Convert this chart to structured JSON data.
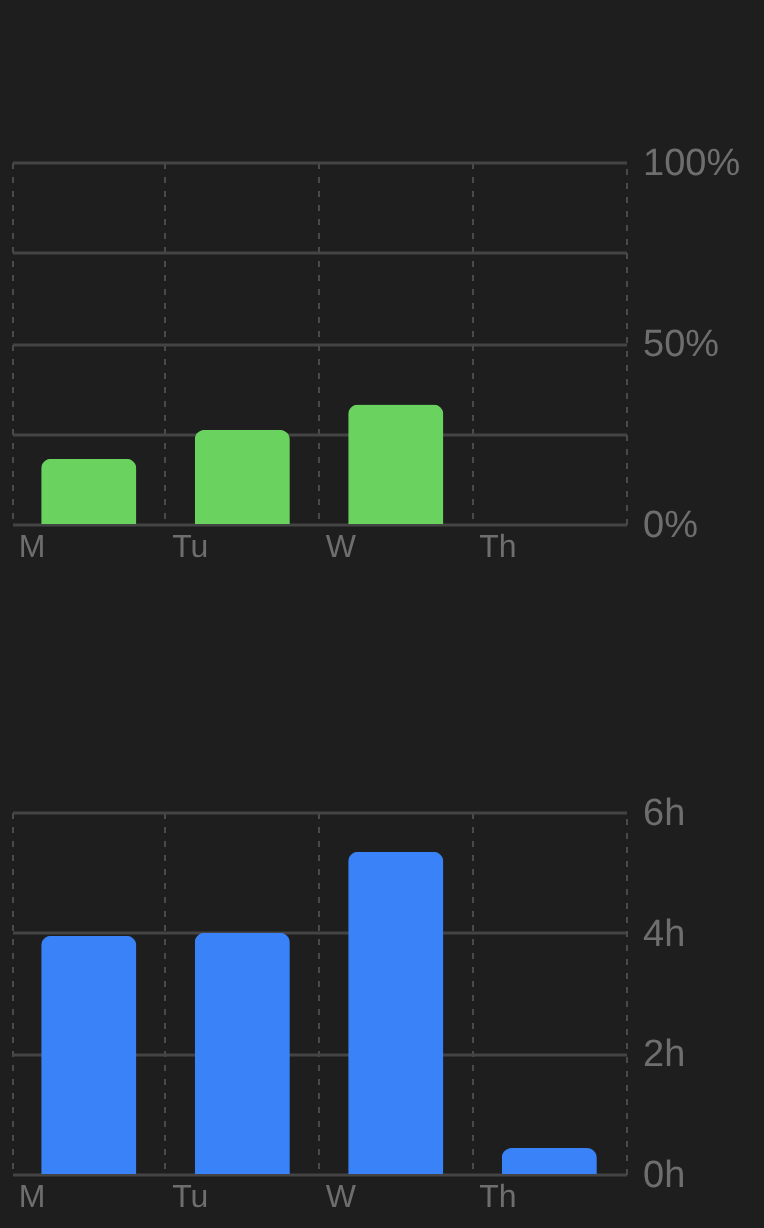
{
  "chart_data": [
    {
      "type": "bar",
      "categories": [
        "M",
        "Tu",
        "W",
        "Th"
      ],
      "values": [
        18,
        26,
        33,
        null
      ],
      "color": "#6ad35f",
      "ylim": [
        0,
        100
      ],
      "yticks": [
        {
          "value": 0,
          "label": "0%"
        },
        {
          "value": 25,
          "label": null
        },
        {
          "value": 50,
          "label": "50%"
        },
        {
          "value": 75,
          "label": null
        },
        {
          "value": 100,
          "label": "100%"
        }
      ],
      "grid": true
    },
    {
      "type": "bar",
      "categories": [
        "M",
        "Tu",
        "W",
        "Th"
      ],
      "values": [
        3.95,
        4.0,
        5.34,
        0.43
      ],
      "color": "#3a82f7",
      "ylim": [
        0,
        6
      ],
      "yticks": [
        {
          "value": 0,
          "label": "0h"
        },
        {
          "value": 2,
          "label": "2h"
        },
        {
          "value": 4,
          "label": "4h"
        },
        {
          "value": 6,
          "label": "6h"
        }
      ],
      "grid": true
    }
  ]
}
